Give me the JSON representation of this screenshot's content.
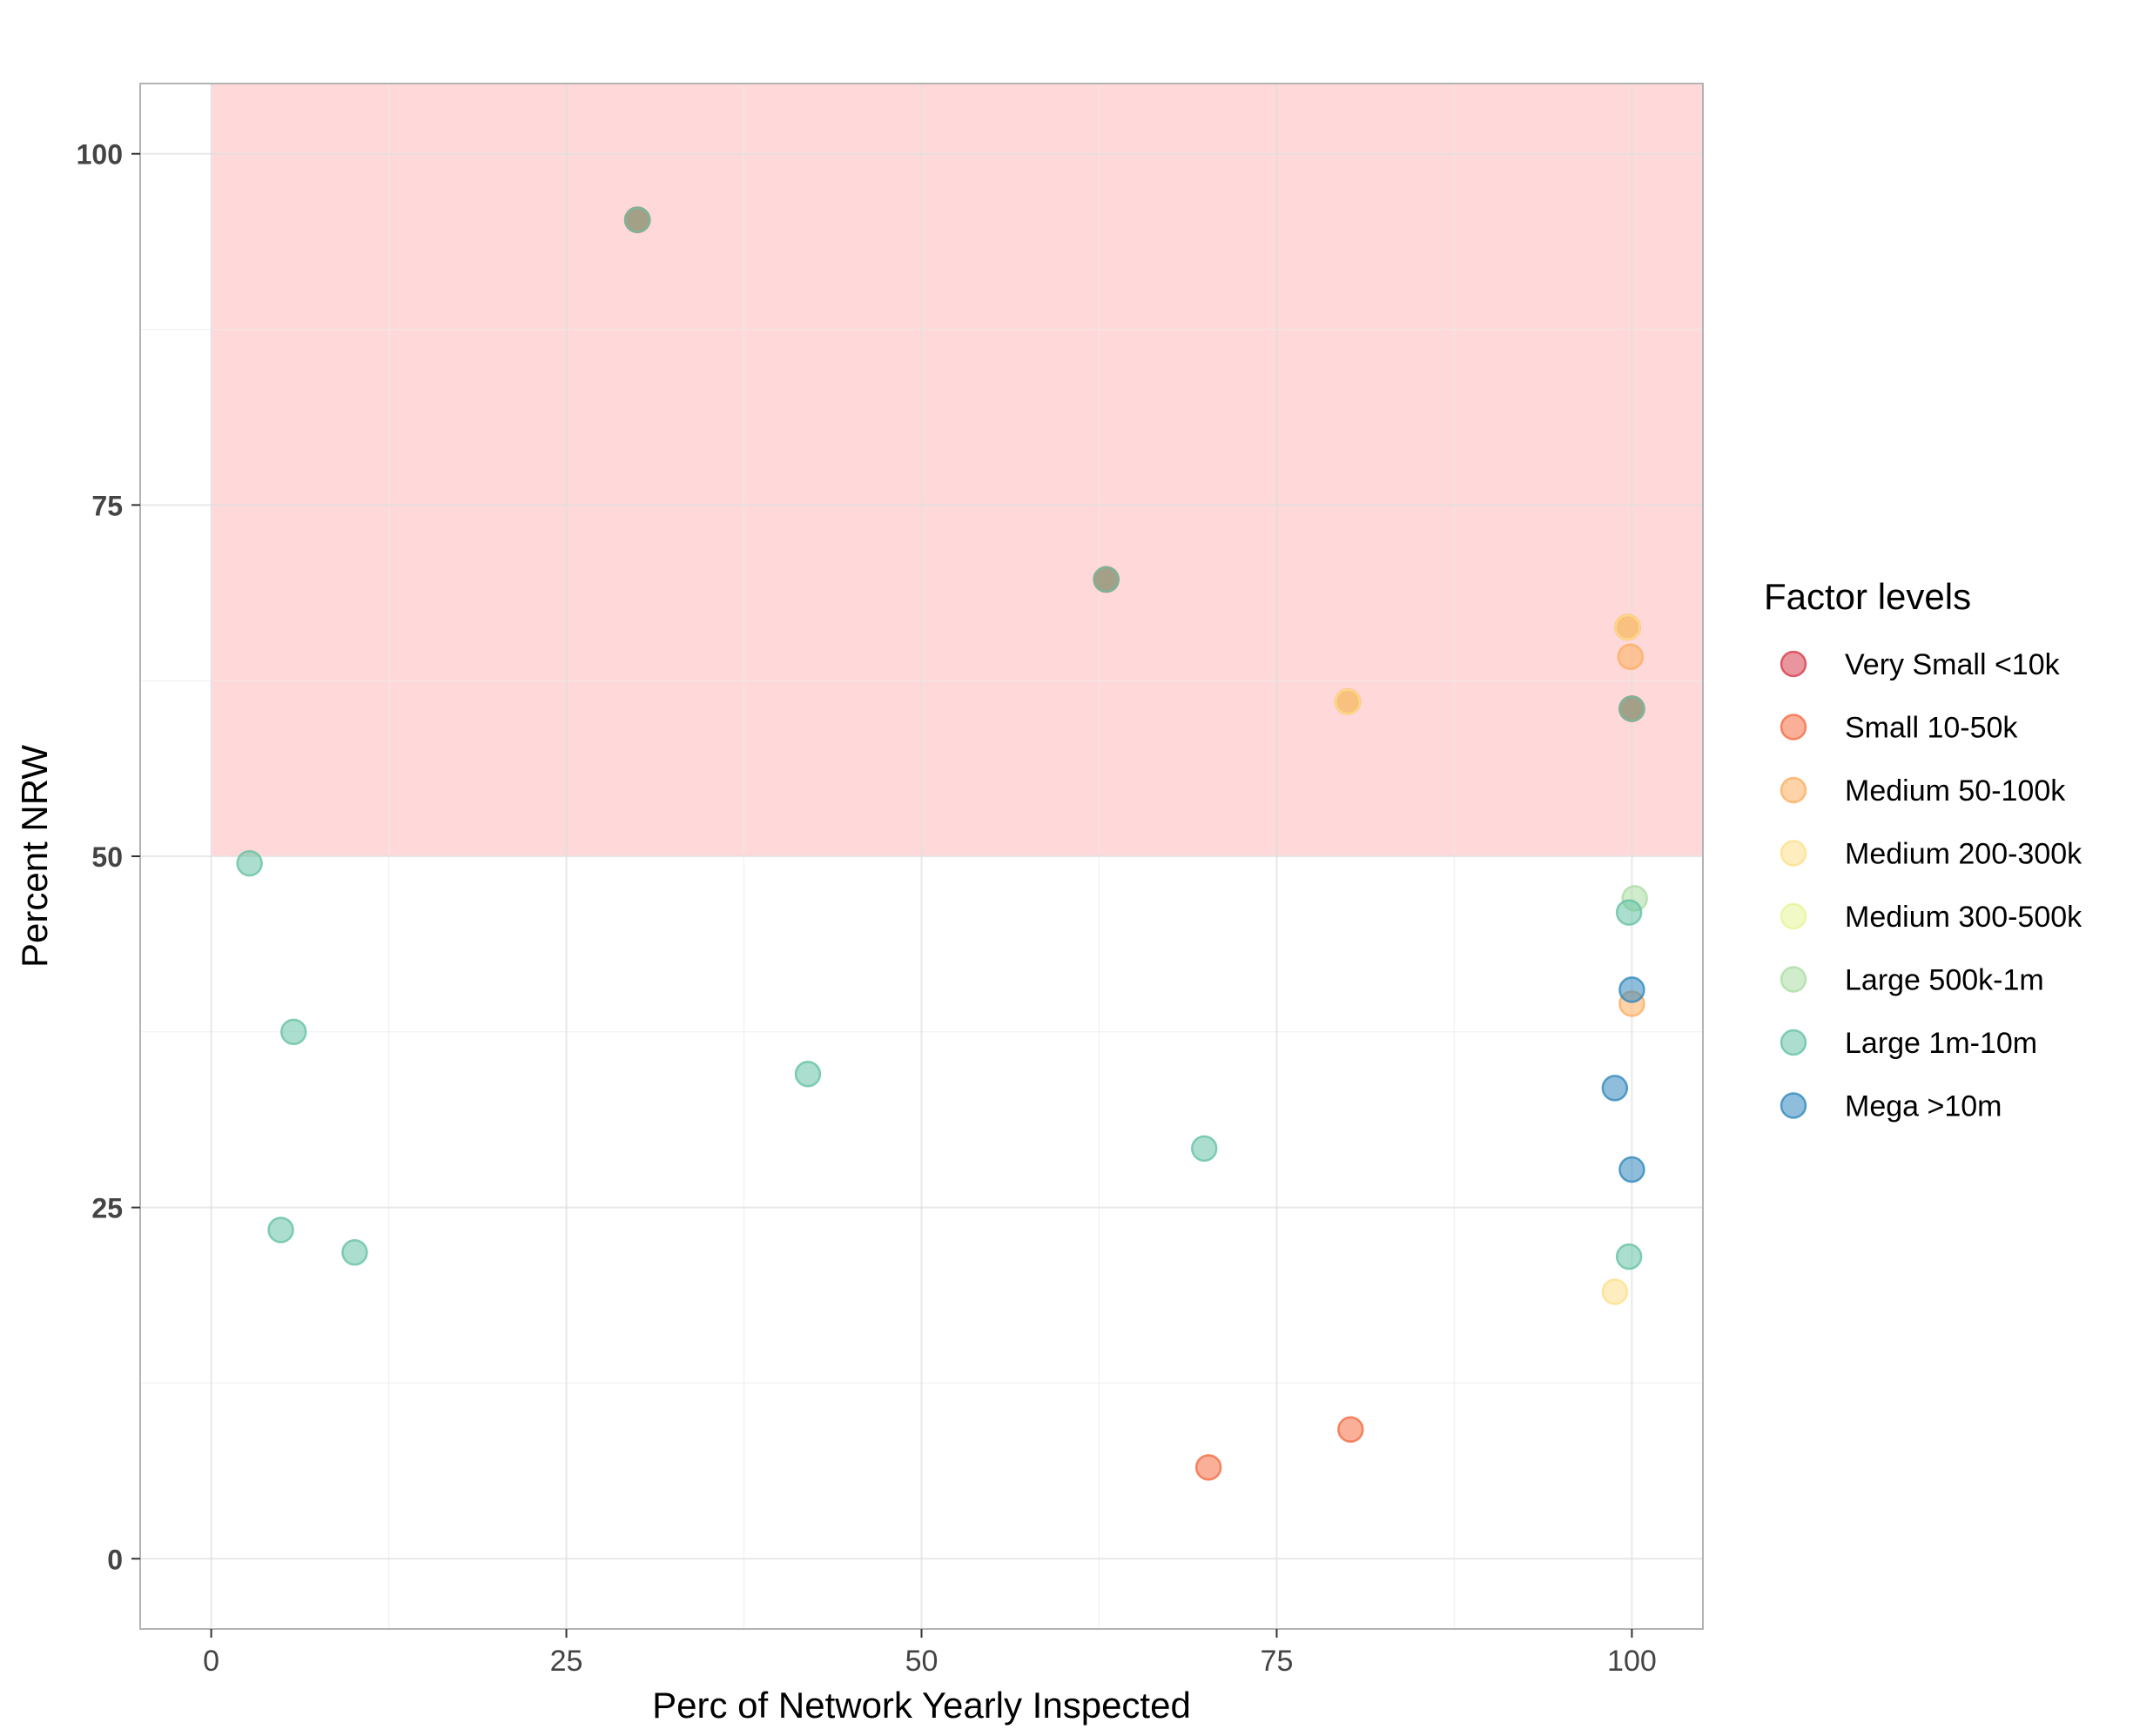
{
  "chart_data": {
    "type": "scatter",
    "title": "",
    "xlabel": "Perc of Network Yearly Inspected",
    "ylabel": "Percent NRW",
    "xlim": [
      -5,
      105
    ],
    "ylim": [
      -5,
      105
    ],
    "x_ticks": [
      0,
      25,
      50,
      75,
      100
    ],
    "y_ticks": [
      0,
      25,
      50,
      75,
      100
    ],
    "x_minor_ticks": [
      12.5,
      37.5,
      62.5,
      87.5
    ],
    "y_minor_ticks": [
      12.5,
      37.5,
      62.5,
      87.5
    ],
    "grid": true,
    "highlight_region": {
      "x": [
        0,
        105
      ],
      "y": [
        50,
        105
      ],
      "color": "#FFB3B3"
    },
    "legend": {
      "title": "Factor levels",
      "position": "right"
    },
    "series": [
      {
        "name": "Very Small <10k",
        "color": "#D53E4F",
        "points": [
          [
            30,
            95.3
          ],
          [
            63,
            69.7
          ],
          [
            80,
            61
          ],
          [
            99.7,
            66.3
          ],
          [
            100,
            60.5
          ]
        ]
      },
      {
        "name": "Small 10-50k",
        "color": "#F46D43",
        "points": [
          [
            70.2,
            6.5
          ],
          [
            80.2,
            9.2
          ],
          [
            30,
            95.3
          ],
          [
            63,
            69.7
          ],
          [
            100,
            60.5
          ]
        ]
      },
      {
        "name": "Medium 50-100k",
        "color": "#FDAE61",
        "points": [
          [
            99.9,
            64.2
          ],
          [
            100,
            39.5
          ],
          [
            80,
            61
          ],
          [
            99.7,
            66.3
          ]
        ]
      },
      {
        "name": "Medium 200-300k",
        "color": "#FEE08B",
        "points": [
          [
            98.8,
            19
          ],
          [
            80,
            61
          ],
          [
            99.7,
            66.3
          ]
        ]
      },
      {
        "name": "Medium 300-500k",
        "color": "#E6F598",
        "points": []
      },
      {
        "name": "Large 500k-1m",
        "color": "#ABDDA4",
        "points": [
          [
            100.2,
            47
          ]
        ]
      },
      {
        "name": "Large 1m-10m",
        "color": "#66C2A5",
        "points": [
          [
            2.7,
            49.5
          ],
          [
            5.8,
            37.5
          ],
          [
            4.9,
            23.4
          ],
          [
            10.1,
            21.8
          ],
          [
            42,
            34.5
          ],
          [
            69.9,
            29.2
          ],
          [
            99.8,
            46
          ],
          [
            99.8,
            21.5
          ],
          [
            30,
            95.3
          ],
          [
            63,
            69.7
          ],
          [
            100,
            60.5
          ]
        ]
      },
      {
        "name": "Mega >10m",
        "color": "#3288BD",
        "points": [
          [
            100,
            40.5
          ],
          [
            98.8,
            33.5
          ],
          [
            100,
            27.7
          ]
        ]
      }
    ]
  }
}
